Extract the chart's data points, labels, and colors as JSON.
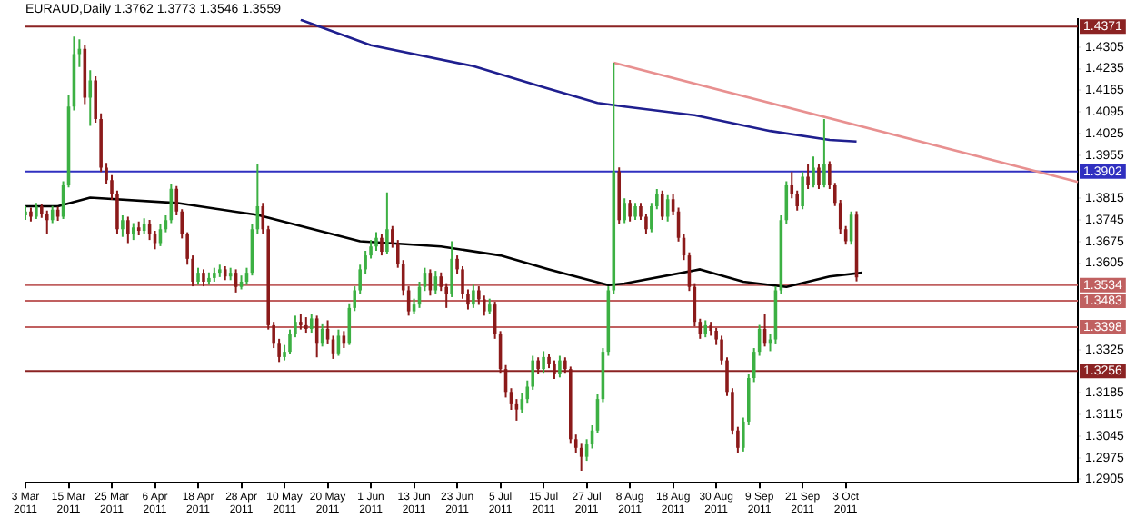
{
  "chart_data": {
    "type": "candlestick",
    "title": "EURAUD,Daily 1.3762 1.3773 1.3546 1.3559",
    "categories": [
      "3 Mar 2011",
      null,
      null,
      null,
      null,
      null,
      null,
      null,
      "15 Mar 2011",
      null,
      null,
      null,
      null,
      null,
      null,
      null,
      "25 Mar 2011",
      null,
      null,
      null,
      null,
      null,
      null,
      null,
      "6 Apr 2011",
      null,
      null,
      null,
      null,
      null,
      null,
      null,
      "18 Apr 2011",
      null,
      null,
      null,
      null,
      null,
      null,
      null,
      "28 Apr 2011",
      null,
      null,
      null,
      null,
      null,
      null,
      null,
      "10 May 2011",
      null,
      null,
      null,
      null,
      null,
      null,
      null,
      "20 May 2011",
      null,
      null,
      null,
      null,
      null,
      null,
      null,
      "1 Jun 2011",
      null,
      null,
      null,
      null,
      null,
      null,
      null,
      "13 Jun 2011",
      null,
      null,
      null,
      null,
      null,
      null,
      null,
      "23 Jun 2011",
      null,
      null,
      null,
      null,
      null,
      null,
      null,
      "5 Jul 2011",
      null,
      null,
      null,
      null,
      null,
      null,
      null,
      "15 Jul 2011",
      null,
      null,
      null,
      null,
      null,
      null,
      null,
      "27 Jul 2011",
      null,
      null,
      null,
      null,
      null,
      null,
      null,
      "8 Aug 2011",
      null,
      null,
      null,
      null,
      null,
      null,
      null,
      "18 Aug 2011",
      null,
      null,
      null,
      null,
      null,
      null,
      null,
      "30 Aug 2011",
      null,
      null,
      null,
      null,
      null,
      null,
      null,
      "9 Sep 2011",
      null,
      null,
      null,
      null,
      null,
      null,
      null,
      "21 Sep 2011",
      null,
      null,
      null,
      null,
      null,
      null,
      null,
      "3 Oct 2011",
      null,
      null,
      null,
      null,
      null,
      null,
      null,
      null,
      null,
      null,
      null,
      null,
      null,
      null,
      null,
      null,
      null,
      null,
      null,
      null,
      null,
      null,
      null,
      null,
      null,
      null,
      null,
      null,
      null,
      null,
      null,
      null,
      null,
      null,
      null,
      null,
      null,
      null,
      null,
      null,
      null,
      null,
      null
    ],
    "ohlc": [
      [
        1.376,
        1.379,
        1.3745,
        1.3772
      ],
      [
        1.3772,
        1.3785,
        1.374,
        1.3755
      ],
      [
        1.3755,
        1.38,
        1.3748,
        1.3789
      ],
      [
        1.3789,
        1.3798,
        1.3752,
        1.3766
      ],
      [
        1.3766,
        1.3775,
        1.37,
        1.3744
      ],
      [
        1.3744,
        1.379,
        1.3735,
        1.3778
      ],
      [
        1.3778,
        1.3788,
        1.3742,
        1.3755
      ],
      [
        1.3755,
        1.387,
        1.3748,
        1.3857
      ],
      [
        1.3857,
        1.415,
        1.385,
        1.4112
      ],
      [
        1.4112,
        1.4339,
        1.41,
        1.4282
      ],
      [
        1.4282,
        1.433,
        1.424,
        1.4299
      ],
      [
        1.4299,
        1.431,
        1.412,
        1.4141
      ],
      [
        1.4141,
        1.423,
        1.405,
        1.4197
      ],
      [
        1.4197,
        1.421,
        1.406,
        1.4072
      ],
      [
        1.4072,
        1.409,
        1.39,
        1.3914
      ],
      [
        1.3914,
        1.393,
        1.386,
        1.3874
      ],
      [
        1.3874,
        1.389,
        1.381,
        1.3829
      ],
      [
        1.3829,
        1.384,
        1.37,
        1.3715
      ],
      [
        1.3715,
        1.376,
        1.369,
        1.3744
      ],
      [
        1.3744,
        1.3755,
        1.367,
        1.3698
      ],
      [
        1.3698,
        1.3735,
        1.368,
        1.3721
      ],
      [
        1.3721,
        1.374,
        1.3695,
        1.371
      ],
      [
        1.371,
        1.375,
        1.3698,
        1.3732
      ],
      [
        1.3732,
        1.3745,
        1.368,
        1.3698
      ],
      [
        1.3698,
        1.371,
        1.365,
        1.367
      ],
      [
        1.367,
        1.373,
        1.366,
        1.3715
      ],
      [
        1.3715,
        1.376,
        1.3705,
        1.3744
      ],
      [
        1.3744,
        1.386,
        1.3735,
        1.3846
      ],
      [
        1.3846,
        1.3855,
        1.376,
        1.3772
      ],
      [
        1.3772,
        1.378,
        1.3685,
        1.3698
      ],
      [
        1.3698,
        1.3705,
        1.36,
        1.3619
      ],
      [
        1.3619,
        1.363,
        1.353,
        1.3545
      ],
      [
        1.3545,
        1.359,
        1.3535,
        1.3574
      ],
      [
        1.3574,
        1.3585,
        1.353,
        1.3545
      ],
      [
        1.3545,
        1.3575,
        1.3535,
        1.3557
      ],
      [
        1.3557,
        1.359,
        1.3545,
        1.3574
      ],
      [
        1.3574,
        1.36,
        1.356,
        1.3585
      ],
      [
        1.3585,
        1.3595,
        1.355,
        1.3562
      ],
      [
        1.3562,
        1.359,
        1.355,
        1.3574
      ],
      [
        1.3574,
        1.3585,
        1.351,
        1.3528
      ],
      [
        1.3528,
        1.3565,
        1.352,
        1.3545
      ],
      [
        1.3545,
        1.359,
        1.3535,
        1.3574
      ],
      [
        1.3574,
        1.373,
        1.3565,
        1.3715
      ],
      [
        1.3715,
        1.3925,
        1.37,
        1.3789
      ],
      [
        1.3789,
        1.38,
        1.37,
        1.3715
      ],
      [
        1.3715,
        1.3725,
        1.339,
        1.3404
      ],
      [
        1.3404,
        1.3415,
        1.333,
        1.3347
      ],
      [
        1.3347,
        1.336,
        1.3285,
        1.3301
      ],
      [
        1.3301,
        1.334,
        1.329,
        1.3318
      ],
      [
        1.3318,
        1.339,
        1.331,
        1.3375
      ],
      [
        1.3375,
        1.3435,
        1.3365,
        1.3415
      ],
      [
        1.3415,
        1.344,
        1.339,
        1.3404
      ],
      [
        1.3404,
        1.343,
        1.338,
        1.3392
      ],
      [
        1.3392,
        1.344,
        1.338,
        1.3426
      ],
      [
        1.3426,
        1.3435,
        1.33,
        1.3347
      ],
      [
        1.3347,
        1.341,
        1.3335,
        1.3392
      ],
      [
        1.3392,
        1.342,
        1.3345,
        1.3358
      ],
      [
        1.3358,
        1.337,
        1.3295,
        1.3313
      ],
      [
        1.3313,
        1.339,
        1.3305,
        1.337
      ],
      [
        1.337,
        1.3385,
        1.333,
        1.3347
      ],
      [
        1.3347,
        1.3475,
        1.334,
        1.346
      ],
      [
        1.346,
        1.353,
        1.345,
        1.3517
      ],
      [
        1.3517,
        1.36,
        1.3505,
        1.3585
      ],
      [
        1.3585,
        1.3645,
        1.357,
        1.363
      ],
      [
        1.363,
        1.368,
        1.362,
        1.3659
      ],
      [
        1.3659,
        1.3705,
        1.3645,
        1.3687
      ],
      [
        1.3687,
        1.37,
        1.363,
        1.3642
      ],
      [
        1.3642,
        1.3834,
        1.3635,
        1.3715
      ],
      [
        1.3715,
        1.3725,
        1.3655,
        1.367
      ],
      [
        1.367,
        1.368,
        1.359,
        1.3602
      ],
      [
        1.3602,
        1.3615,
        1.35,
        1.3517
      ],
      [
        1.3517,
        1.353,
        1.3435,
        1.3449
      ],
      [
        1.3449,
        1.349,
        1.344,
        1.3471
      ],
      [
        1.3471,
        1.3545,
        1.346,
        1.3528
      ],
      [
        1.3528,
        1.359,
        1.3515,
        1.3574
      ],
      [
        1.3574,
        1.3585,
        1.35,
        1.3517
      ],
      [
        1.3517,
        1.358,
        1.3505,
        1.3562
      ],
      [
        1.3562,
        1.3575,
        1.3515,
        1.3528
      ],
      [
        1.3528,
        1.354,
        1.346,
        1.3505
      ],
      [
        1.3505,
        1.3676,
        1.3495,
        1.3619
      ],
      [
        1.3619,
        1.363,
        1.357,
        1.3585
      ],
      [
        1.3585,
        1.3595,
        1.349,
        1.3505
      ],
      [
        1.3505,
        1.352,
        1.3455,
        1.3471
      ],
      [
        1.3471,
        1.3535,
        1.346,
        1.3517
      ],
      [
        1.3517,
        1.353,
        1.347,
        1.3488
      ],
      [
        1.3488,
        1.35,
        1.3435,
        1.3449
      ],
      [
        1.3449,
        1.349,
        1.344,
        1.3471
      ],
      [
        1.3471,
        1.348,
        1.336,
        1.3375
      ],
      [
        1.3375,
        1.3385,
        1.325,
        1.3262
      ],
      [
        1.3262,
        1.3275,
        1.317,
        1.3188
      ],
      [
        1.3188,
        1.32,
        1.313,
        1.3148
      ],
      [
        1.3148,
        1.3165,
        1.3095,
        1.3131
      ],
      [
        1.3131,
        1.3185,
        1.312,
        1.3165
      ],
      [
        1.3165,
        1.3225,
        1.315,
        1.3205
      ],
      [
        1.3205,
        1.3305,
        1.3195,
        1.329
      ],
      [
        1.329,
        1.33,
        1.3245,
        1.3262
      ],
      [
        1.3262,
        1.332,
        1.325,
        1.3301
      ],
      [
        1.3301,
        1.331,
        1.3265,
        1.3279
      ],
      [
        1.3279,
        1.329,
        1.323,
        1.3245
      ],
      [
        1.3245,
        1.3305,
        1.3235,
        1.329
      ],
      [
        1.329,
        1.33,
        1.325,
        1.3262
      ],
      [
        1.3262,
        1.327,
        1.302,
        1.3035
      ],
      [
        1.3035,
        1.305,
        1.299,
        1.3007
      ],
      [
        1.3007,
        1.302,
        1.2933,
        1.2978
      ],
      [
        1.2978,
        1.3035,
        1.2965,
        1.3018
      ],
      [
        1.3018,
        1.308,
        1.3005,
        1.3063
      ],
      [
        1.3063,
        1.318,
        1.3055,
        1.3165
      ],
      [
        1.3165,
        1.333,
        1.3155,
        1.3318
      ],
      [
        1.3318,
        1.353,
        1.3305,
        1.3517
      ],
      [
        1.3517,
        1.4254,
        1.3505,
        1.3902
      ],
      [
        1.3902,
        1.3915,
        1.373,
        1.3744
      ],
      [
        1.3744,
        1.3815,
        1.3735,
        1.38
      ],
      [
        1.38,
        1.381,
        1.374,
        1.3755
      ],
      [
        1.3755,
        1.38,
        1.3745,
        1.3789
      ],
      [
        1.3789,
        1.38,
        1.3745,
        1.3755
      ],
      [
        1.3755,
        1.3765,
        1.37,
        1.3715
      ],
      [
        1.3715,
        1.38,
        1.3705,
        1.3789
      ],
      [
        1.3789,
        1.3845,
        1.378,
        1.3829
      ],
      [
        1.3829,
        1.384,
        1.3745,
        1.3755
      ],
      [
        1.3755,
        1.3825,
        1.374,
        1.3812
      ],
      [
        1.3812,
        1.383,
        1.376,
        1.3772
      ],
      [
        1.3772,
        1.3785,
        1.3675,
        1.3687
      ],
      [
        1.3687,
        1.37,
        1.3615,
        1.363
      ],
      [
        1.363,
        1.364,
        1.3515,
        1.3528
      ],
      [
        1.3528,
        1.354,
        1.34,
        1.3415
      ],
      [
        1.3415,
        1.3425,
        1.336,
        1.3375
      ],
      [
        1.3375,
        1.342,
        1.3365,
        1.3404
      ],
      [
        1.3404,
        1.3415,
        1.337,
        1.3386
      ],
      [
        1.3386,
        1.3395,
        1.334,
        1.3358
      ],
      [
        1.3358,
        1.337,
        1.3275,
        1.329
      ],
      [
        1.329,
        1.33,
        1.3175,
        1.3188
      ],
      [
        1.3188,
        1.32,
        1.305,
        1.3063
      ],
      [
        1.3063,
        1.3075,
        1.299,
        1.3007
      ],
      [
        1.3007,
        1.3105,
        1.2995,
        1.3092
      ],
      [
        1.3092,
        1.3245,
        1.308,
        1.3233
      ],
      [
        1.3233,
        1.333,
        1.322,
        1.3318
      ],
      [
        1.3318,
        1.3405,
        1.3305,
        1.3392
      ],
      [
        1.3392,
        1.344,
        1.3335,
        1.3347
      ],
      [
        1.3347,
        1.3375,
        1.332,
        1.3358
      ],
      [
        1.3358,
        1.353,
        1.3345,
        1.3517
      ],
      [
        1.3517,
        1.376,
        1.3505,
        1.3744
      ],
      [
        1.3744,
        1.387,
        1.373,
        1.3857
      ],
      [
        1.3857,
        1.39,
        1.3815,
        1.3829
      ],
      [
        1.3829,
        1.384,
        1.3775,
        1.3789
      ],
      [
        1.3789,
        1.39,
        1.378,
        1.3885
      ],
      [
        1.3885,
        1.3925,
        1.3845,
        1.3857
      ],
      [
        1.3857,
        1.395,
        1.385,
        1.3914
      ],
      [
        1.3914,
        1.3925,
        1.3845,
        1.3857
      ],
      [
        1.3857,
        1.4072,
        1.385,
        1.3925
      ],
      [
        1.3925,
        1.3935,
        1.3845,
        1.3857
      ],
      [
        1.3857,
        1.3865,
        1.379,
        1.38
      ],
      [
        1.38,
        1.381,
        1.37,
        1.3715
      ],
      [
        1.3715,
        1.3725,
        1.3665,
        1.3676
      ],
      [
        1.3676,
        1.3772,
        1.3665,
        1.3762
      ],
      [
        1.3762,
        1.3773,
        1.3546,
        1.3559
      ],
      null,
      null,
      null,
      null,
      null,
      null,
      null,
      null,
      null,
      null,
      null,
      null,
      null,
      null,
      null,
      null,
      null,
      null,
      null,
      null,
      null,
      null,
      null,
      null,
      null,
      null,
      null,
      null,
      null,
      null,
      null,
      null,
      null,
      null,
      null,
      null,
      null,
      null,
      null,
      null,
      null
    ],
    "colors": [
      "#3cb043",
      "#8b1a1a",
      "#3cb043",
      "#8b1a1a",
      "#8b1a1a",
      "#3cb043",
      "#8b1a1a",
      "#3cb043",
      "#3cb043",
      "#3cb043",
      "#3cb043",
      "#8b1a1a",
      "#3cb043",
      "#8b1a1a",
      "#8b1a1a",
      "#8b1a1a",
      "#8b1a1a",
      "#8b1a1a",
      "#3cb043",
      "#8b1a1a",
      "#3cb043",
      "#8b1a1a",
      "#3cb043",
      "#8b1a1a",
      "#8b1a1a",
      "#3cb043",
      "#3cb043",
      "#3cb043",
      "#8b1a1a",
      "#8b1a1a",
      "#8b1a1a",
      "#8b1a1a",
      "#3cb043",
      "#8b1a1a",
      "#3cb043",
      "#3cb043",
      "#3cb043",
      "#8b1a1a",
      "#3cb043",
      "#8b1a1a",
      "#3cb043",
      "#3cb043",
      "#3cb043",
      "#3cb043",
      "#8b1a1a",
      "#8b1a1a",
      "#8b1a1a",
      "#8b1a1a",
      "#3cb043",
      "#3cb043",
      "#3cb043",
      "#8b1a1a",
      "#8b1a1a",
      "#3cb043",
      "#8b1a1a",
      "#3cb043",
      "#8b1a1a",
      "#8b1a1a",
      "#3cb043",
      "#8b1a1a",
      "#3cb043",
      "#3cb043",
      "#3cb043",
      "#3cb043",
      "#3cb043",
      "#3cb043",
      "#8b1a1a",
      "#3cb043",
      "#8b1a1a",
      "#8b1a1a",
      "#8b1a1a",
      "#8b1a1a",
      "#3cb043",
      "#3cb043",
      "#3cb043",
      "#8b1a1a",
      "#3cb043",
      "#8b1a1a",
      "#8b1a1a",
      "#3cb043",
      "#8b1a1a",
      "#8b1a1a",
      "#8b1a1a",
      "#3cb043",
      "#8b1a1a",
      "#8b1a1a",
      "#3cb043",
      "#8b1a1a",
      "#8b1a1a",
      "#8b1a1a",
      "#8b1a1a",
      "#8b1a1a",
      "#3cb043",
      "#3cb043",
      "#3cb043",
      "#8b1a1a",
      "#3cb043",
      "#8b1a1a",
      "#8b1a1a",
      "#3cb043",
      "#8b1a1a",
      "#8b1a1a",
      "#8b1a1a",
      "#8b1a1a",
      "#3cb043",
      "#3cb043",
      "#3cb043",
      "#3cb043",
      "#3cb043",
      "#3cb043",
      "#8b1a1a",
      "#3cb043",
      "#8b1a1a",
      "#3cb043",
      "#8b1a1a",
      "#8b1a1a",
      "#3cb043",
      "#3cb043",
      "#8b1a1a",
      "#3cb043",
      "#8b1a1a",
      "#8b1a1a",
      "#8b1a1a",
      "#8b1a1a",
      "#8b1a1a",
      "#8b1a1a",
      "#3cb043",
      "#8b1a1a",
      "#8b1a1a",
      "#8b1a1a",
      "#8b1a1a",
      "#8b1a1a",
      "#8b1a1a",
      "#3cb043",
      "#3cb043",
      "#3cb043",
      "#3cb043",
      "#8b1a1a",
      "#3cb043",
      "#3cb043",
      "#3cb043",
      "#3cb043",
      "#8b1a1a",
      "#8b1a1a",
      "#3cb043",
      "#8b1a1a",
      "#3cb043",
      "#8b1a1a",
      "#3cb043",
      "#8b1a1a",
      "#8b1a1a",
      "#8b1a1a",
      "#8b1a1a",
      "#3cb043",
      "#8b1a1a",
      null,
      null,
      null,
      null,
      null,
      null,
      null,
      null,
      null,
      null,
      null,
      null,
      null,
      null,
      null,
      null,
      null,
      null,
      null,
      null,
      null,
      null,
      null,
      null,
      null,
      null,
      null,
      null,
      null,
      null,
      null,
      null,
      null,
      null,
      null,
      null,
      null,
      null,
      null,
      null,
      null
    ],
    "series": [
      {
        "type": "line",
        "color": "#1f1f8f",
        "values": [
          null,
          null,
          null,
          null,
          null,
          null,
          null,
          null,
          null,
          null,
          null,
          null,
          null,
          null,
          null,
          null,
          null,
          null,
          null,
          null,
          null,
          null,
          null,
          null,
          null,
          null,
          null,
          null,
          null,
          null,
          null,
          null,
          null,
          null,
          null,
          null,
          null,
          null,
          null,
          null,
          null,
          null,
          null,
          null,
          null,
          null,
          null,
          null,
          null,
          null,
          null,
          1.4393,
          null,
          null,
          null,
          null,
          null,
          null,
          null,
          null,
          null,
          null,
          null,
          null,
          1.4311,
          null,
          null,
          null,
          null,
          null,
          null,
          null,
          null,
          null,
          null,
          null,
          null,
          null,
          null,
          null,
          null,
          null,
          null,
          1.4243,
          null,
          null,
          null,
          null,
          null,
          null,
          null,
          null,
          null,
          null,
          null,
          null,
          1.4175,
          null,
          null,
          null,
          null,
          null,
          null,
          null,
          null,
          null,
          1.4124,
          null,
          null,
          null,
          null,
          1.4112,
          null,
          null,
          null,
          null,
          null,
          null,
          null,
          null,
          null,
          null,
          null,
          null,
          1.4084,
          null,
          null,
          null,
          null,
          null,
          null,
          null,
          null,
          null,
          null,
          null,
          null,
          null,
          1.4033,
          null,
          null,
          null,
          null,
          null,
          null,
          null,
          null,
          null,
          null,
          1.4004,
          null,
          null,
          null,
          null,
          1.3999,
          null,
          null,
          null,
          null,
          null,
          null,
          null,
          null,
          null,
          null,
          null,
          null,
          null,
          null,
          null,
          null,
          null,
          null,
          null,
          null,
          null,
          null,
          null,
          null,
          null,
          null,
          null,
          null,
          null,
          null,
          null,
          null,
          null,
          null,
          null,
          null,
          null,
          null,
          null,
          null,
          null
        ]
      },
      {
        "type": "line",
        "color": "#000000",
        "values": [
          1.3789,
          null,
          null,
          null,
          null,
          null,
          1.3789,
          null,
          null,
          null,
          null,
          null,
          1.3817,
          null,
          null,
          null,
          null,
          null,
          null,
          null,
          null,
          null,
          null,
          null,
          null,
          null,
          null,
          null,
          1.38,
          null,
          null,
          null,
          null,
          null,
          null,
          null,
          null,
          null,
          null,
          null,
          null,
          null,
          null,
          1.3761,
          null,
          null,
          null,
          null,
          null,
          null,
          null,
          null,
          null,
          null,
          null,
          null,
          null,
          null,
          null,
          null,
          null,
          null,
          1.3676,
          null,
          null,
          null,
          null,
          null,
          null,
          null,
          null,
          null,
          null,
          null,
          null,
          null,
          null,
          1.3659,
          null,
          null,
          null,
          null,
          null,
          null,
          null,
          null,
          null,
          null,
          1.363,
          null,
          null,
          null,
          null,
          null,
          null,
          null,
          null,
          1.3585,
          null,
          null,
          null,
          null,
          null,
          null,
          null,
          null,
          null,
          null,
          1.3534,
          null,
          null,
          1.3539,
          null,
          null,
          null,
          null,
          null,
          null,
          null,
          null,
          null,
          null,
          null,
          null,
          null,
          1.3585,
          null,
          null,
          null,
          null,
          null,
          null,
          null,
          1.3545,
          null,
          null,
          null,
          null,
          null,
          null,
          null,
          1.3528,
          null,
          null,
          null,
          null,
          null,
          null,
          null,
          1.3562,
          null,
          null,
          null,
          null,
          null,
          1.3574,
          null,
          null,
          null,
          null,
          null,
          null,
          null,
          null,
          null,
          null,
          null,
          null,
          null,
          null,
          null,
          null,
          null,
          null,
          null,
          null,
          null,
          null,
          null,
          null,
          null,
          null,
          null,
          null,
          null,
          null,
          null,
          null,
          null,
          null,
          null,
          null,
          null,
          null,
          null,
          null
        ]
      },
      {
        "type": "line",
        "color": "#e89090",
        "values": [
          null,
          null,
          null,
          null,
          null,
          null,
          null,
          null,
          null,
          null,
          null,
          null,
          null,
          null,
          null,
          null,
          null,
          null,
          null,
          null,
          null,
          null,
          null,
          null,
          null,
          null,
          null,
          null,
          null,
          null,
          null,
          null,
          null,
          null,
          null,
          null,
          null,
          null,
          null,
          null,
          null,
          null,
          null,
          null,
          null,
          null,
          null,
          null,
          null,
          null,
          null,
          null,
          null,
          null,
          null,
          null,
          null,
          null,
          null,
          null,
          null,
          null,
          null,
          null,
          null,
          null,
          null,
          null,
          null,
          null,
          null,
          null,
          null,
          null,
          null,
          null,
          null,
          null,
          null,
          null,
          null,
          null,
          null,
          null,
          null,
          null,
          null,
          null,
          null,
          null,
          null,
          null,
          null,
          null,
          null,
          null,
          null,
          null,
          null,
          null,
          null,
          null,
          null,
          null,
          null,
          null,
          null,
          null,
          null,
          1.4254,
          null,
          null,
          null,
          null,
          null,
          null,
          null,
          null,
          null,
          null,
          null,
          null,
          null,
          null,
          null,
          null,
          null,
          null,
          null,
          null,
          null,
          null,
          null,
          null,
          null,
          null,
          null,
          null,
          null,
          null,
          null,
          null,
          null,
          null,
          null,
          null,
          null,
          null,
          null,
          null,
          null,
          null,
          null,
          null,
          null,
          null,
          null,
          null,
          null,
          null,
          null,
          null,
          null,
          null,
          null,
          null,
          null,
          null,
          null,
          null,
          null,
          null,
          null,
          null,
          null,
          null,
          null,
          null,
          null,
          null,
          null,
          null,
          null,
          null,
          null,
          null,
          null,
          null,
          null,
          null,
          null,
          null,
          null,
          null,
          null,
          1.3868
        ]
      }
    ],
    "ref_lines": [
      {
        "axis": "y",
        "value": 1.4371,
        "label": "1.4371",
        "color": "#8b2323"
      },
      {
        "axis": "y",
        "value": 1.3902,
        "label": "1.3902",
        "color": "#3030c0"
      },
      {
        "axis": "y",
        "value": 1.3534,
        "label": "1.3534",
        "color": "#c06060"
      },
      {
        "axis": "y",
        "value": 1.3483,
        "label": "1.3483",
        "color": "#c06060"
      },
      {
        "axis": "y",
        "value": 1.3398,
        "label": "1.3398",
        "color": "#c06060"
      },
      {
        "axis": "y",
        "value": 1.3256,
        "label": "1.3256",
        "color": "#8b2323"
      }
    ],
    "ylim": [
      1.2894,
      1.4396
    ],
    "yticks": [
      1.2905,
      1.2975,
      1.3045,
      1.3115,
      1.3185,
      1.3325,
      1.3605,
      1.3675,
      1.3745,
      1.3815,
      1.3955,
      1.4025,
      1.4095,
      1.4165,
      1.4235,
      1.4305
    ],
    "grid": false,
    "legend": false
  }
}
